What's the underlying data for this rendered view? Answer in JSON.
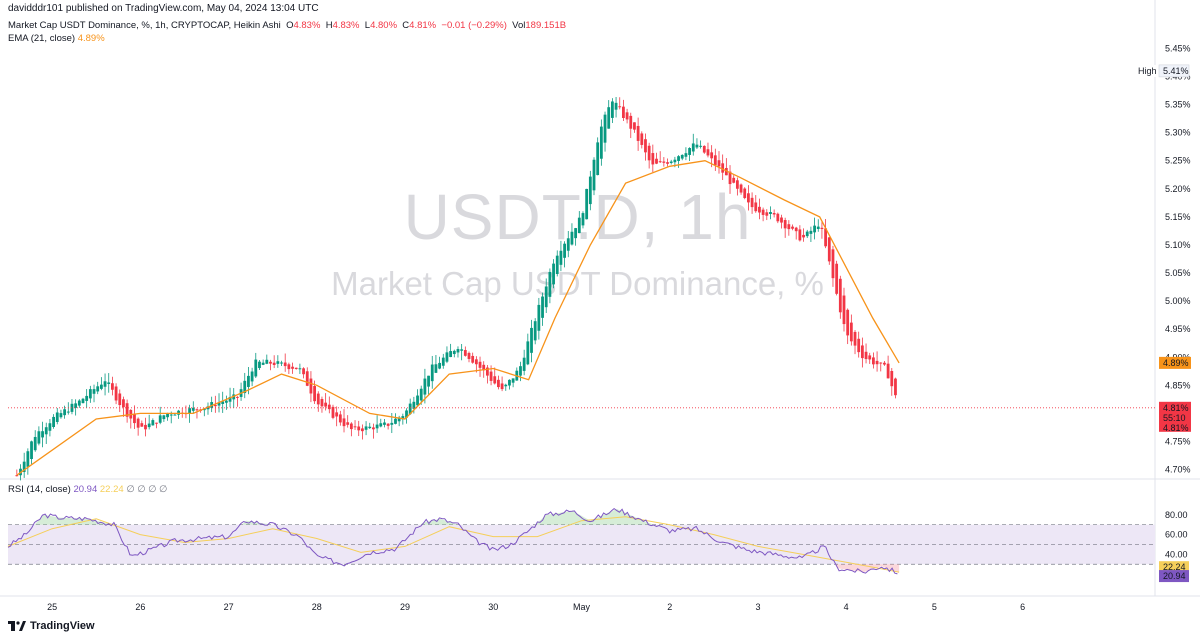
{
  "header": {
    "published": "davidddr101 published on TradingView.com, May 04, 2024 13:04 UTC",
    "symbol_line": "Market Cap USDT Dominance, %, 1h, CRYPTOCAP, Heikin Ashi",
    "ohlc": {
      "o_label": "O",
      "o": "4.83%",
      "h_label": "H",
      "h": "4.83%",
      "l_label": "L",
      "l": "4.80%",
      "c_label": "C",
      "c": "4.81%",
      "change": "−0.01 (−0.29%)",
      "vol_label": "Vol",
      "vol": "189.151B"
    },
    "ema_label": "EMA (21, close)",
    "ema_value": "4.89%"
  },
  "watermark": {
    "line1": "USDT.D, 1h",
    "line2": "Market Cap USDT Dominance, %"
  },
  "rsi_legend": {
    "label": "RSI (14, close)",
    "rsi": "20.94",
    "ma": "22.24",
    "extra": "∅ ∅ ∅ ∅"
  },
  "footer": {
    "brand": "TradingView"
  },
  "colors": {
    "up": "#089981",
    "down": "#f23645",
    "ema": "#f7931a",
    "rsi": "#7e57c2",
    "rsi_ma": "#f5cf5a",
    "band": "#ede7f6"
  },
  "chart_data": {
    "type": "candlestick",
    "chart_style": "Heikin Ashi",
    "timeframe": "1h",
    "y_ticks": [
      "5.45%",
      "5.40%",
      "5.35%",
      "5.30%",
      "5.25%",
      "5.20%",
      "5.15%",
      "5.10%",
      "5.05%",
      "5.00%",
      "4.95%",
      "4.90%",
      "4.85%",
      "4.80%",
      "4.75%",
      "4.70%"
    ],
    "y_tick_values": [
      5.45,
      5.4,
      5.35,
      5.3,
      5.25,
      5.2,
      5.15,
      5.1,
      5.05,
      5.0,
      4.95,
      4.9,
      4.85,
      4.8,
      4.75,
      4.7
    ],
    "ylim": [
      4.685,
      5.465
    ],
    "x_ticks": [
      "25",
      "26",
      "27",
      "28",
      "29",
      "30",
      "May",
      "2",
      "3",
      "4",
      "5",
      "6"
    ],
    "x_tick_days": [
      0,
      1,
      2,
      3,
      4,
      5,
      6,
      7,
      8,
      9,
      10,
      11
    ],
    "x_range_days": [
      -0.5,
      12.5
    ],
    "labels": {
      "high_label": "High",
      "high_value": "5.41%",
      "ema_badge": "4.89%",
      "price_badge": "4.81%",
      "countdown": "55:10",
      "price_badge2": "4.81%"
    },
    "price_levels": {
      "high": 5.41,
      "ema": 4.89,
      "last": 4.81
    },
    "key_closes": [
      {
        "day": -0.4,
        "close": 4.69
      },
      {
        "day": -0.2,
        "close": 4.76
      },
      {
        "day": 0.0,
        "close": 4.79
      },
      {
        "day": 0.3,
        "close": 4.82
      },
      {
        "day": 0.6,
        "close": 4.86
      },
      {
        "day": 0.8,
        "close": 4.81
      },
      {
        "day": 1.0,
        "close": 4.77
      },
      {
        "day": 1.3,
        "close": 4.8
      },
      {
        "day": 1.7,
        "close": 4.81
      },
      {
        "day": 2.1,
        "close": 4.83
      },
      {
        "day": 2.3,
        "close": 4.89
      },
      {
        "day": 2.5,
        "close": 4.89
      },
      {
        "day": 2.8,
        "close": 4.88
      },
      {
        "day": 3.0,
        "close": 4.82
      },
      {
        "day": 3.4,
        "close": 4.77
      },
      {
        "day": 3.8,
        "close": 4.78
      },
      {
        "day": 4.0,
        "close": 4.8
      },
      {
        "day": 4.3,
        "close": 4.88
      },
      {
        "day": 4.6,
        "close": 4.92
      },
      {
        "day": 4.8,
        "close": 4.89
      },
      {
        "day": 5.1,
        "close": 4.84
      },
      {
        "day": 5.3,
        "close": 4.88
      },
      {
        "day": 5.5,
        "close": 4.98
      },
      {
        "day": 5.7,
        "close": 5.08
      },
      {
        "day": 6.0,
        "close": 5.15
      },
      {
        "day": 6.2,
        "close": 5.3
      },
      {
        "day": 6.35,
        "close": 5.36
      },
      {
        "day": 6.6,
        "close": 5.3
      },
      {
        "day": 6.8,
        "close": 5.24
      },
      {
        "day": 7.0,
        "close": 5.25
      },
      {
        "day": 7.3,
        "close": 5.28
      },
      {
        "day": 7.6,
        "close": 5.23
      },
      {
        "day": 7.9,
        "close": 5.17
      },
      {
        "day": 8.2,
        "close": 5.15
      },
      {
        "day": 8.5,
        "close": 5.11
      },
      {
        "day": 8.7,
        "close": 5.14
      },
      {
        "day": 8.85,
        "close": 5.04
      },
      {
        "day": 9.0,
        "close": 4.94
      },
      {
        "day": 9.2,
        "close": 4.9
      },
      {
        "day": 9.45,
        "close": 4.88
      },
      {
        "day": 9.6,
        "close": 4.81
      }
    ],
    "ema_21": [
      {
        "day": -0.4,
        "value": 4.69
      },
      {
        "day": 0.5,
        "value": 4.79
      },
      {
        "day": 1.0,
        "value": 4.8
      },
      {
        "day": 1.6,
        "value": 4.8
      },
      {
        "day": 2.2,
        "value": 4.84
      },
      {
        "day": 2.6,
        "value": 4.87
      },
      {
        "day": 3.0,
        "value": 4.85
      },
      {
        "day": 3.6,
        "value": 4.8
      },
      {
        "day": 4.0,
        "value": 4.79
      },
      {
        "day": 4.5,
        "value": 4.87
      },
      {
        "day": 5.0,
        "value": 4.88
      },
      {
        "day": 5.4,
        "value": 4.86
      },
      {
        "day": 5.7,
        "value": 4.97
      },
      {
        "day": 6.1,
        "value": 5.1
      },
      {
        "day": 6.5,
        "value": 5.21
      },
      {
        "day": 7.0,
        "value": 5.24
      },
      {
        "day": 7.4,
        "value": 5.25
      },
      {
        "day": 7.8,
        "value": 5.22
      },
      {
        "day": 8.3,
        "value": 5.18
      },
      {
        "day": 8.7,
        "value": 5.15
      },
      {
        "day": 9.0,
        "value": 5.06
      },
      {
        "day": 9.3,
        "value": 4.97
      },
      {
        "day": 9.6,
        "value": 4.89
      }
    ],
    "rsi": {
      "y_ticks": [
        "80.00",
        "60.00",
        "40.00"
      ],
      "y_tick_values": [
        80,
        60,
        40
      ],
      "ylim": [
        12,
        95
      ],
      "band": [
        30,
        70
      ],
      "midline": 50,
      "labels": {
        "ma_badge": "22.24",
        "rsi_badge": "20.94"
      },
      "rsi_values": [
        {
          "day": -0.5,
          "value": 48
        },
        {
          "day": -0.3,
          "value": 60
        },
        {
          "day": -0.1,
          "value": 80
        },
        {
          "day": 0.1,
          "value": 77
        },
        {
          "day": 0.4,
          "value": 76
        },
        {
          "day": 0.7,
          "value": 70
        },
        {
          "day": 0.9,
          "value": 38
        },
        {
          "day": 1.1,
          "value": 44
        },
        {
          "day": 1.4,
          "value": 54
        },
        {
          "day": 1.7,
          "value": 56
        },
        {
          "day": 2.0,
          "value": 58
        },
        {
          "day": 2.2,
          "value": 74
        },
        {
          "day": 2.5,
          "value": 70
        },
        {
          "day": 2.8,
          "value": 58
        },
        {
          "day": 3.0,
          "value": 38
        },
        {
          "day": 3.3,
          "value": 30
        },
        {
          "day": 3.6,
          "value": 42
        },
        {
          "day": 3.9,
          "value": 46
        },
        {
          "day": 4.2,
          "value": 72
        },
        {
          "day": 4.4,
          "value": 76
        },
        {
          "day": 4.6,
          "value": 70
        },
        {
          "day": 4.8,
          "value": 54
        },
        {
          "day": 5.0,
          "value": 44
        },
        {
          "day": 5.2,
          "value": 50
        },
        {
          "day": 5.4,
          "value": 64
        },
        {
          "day": 5.6,
          "value": 80
        },
        {
          "day": 5.9,
          "value": 84
        },
        {
          "day": 6.1,
          "value": 74
        },
        {
          "day": 6.4,
          "value": 86
        },
        {
          "day": 6.7,
          "value": 74
        },
        {
          "day": 7.0,
          "value": 64
        },
        {
          "day": 7.3,
          "value": 66
        },
        {
          "day": 7.6,
          "value": 52
        },
        {
          "day": 7.9,
          "value": 44
        },
        {
          "day": 8.2,
          "value": 40
        },
        {
          "day": 8.5,
          "value": 36
        },
        {
          "day": 8.75,
          "value": 48
        },
        {
          "day": 8.9,
          "value": 26
        },
        {
          "day": 9.2,
          "value": 22
        },
        {
          "day": 9.4,
          "value": 28
        },
        {
          "day": 9.6,
          "value": 21
        }
      ],
      "ma_values": [
        {
          "day": -0.5,
          "value": 48
        },
        {
          "day": 0.0,
          "value": 66
        },
        {
          "day": 0.5,
          "value": 76
        },
        {
          "day": 1.0,
          "value": 60
        },
        {
          "day": 1.5,
          "value": 52
        },
        {
          "day": 2.0,
          "value": 56
        },
        {
          "day": 2.5,
          "value": 66
        },
        {
          "day": 3.0,
          "value": 56
        },
        {
          "day": 3.5,
          "value": 42
        },
        {
          "day": 4.0,
          "value": 48
        },
        {
          "day": 4.5,
          "value": 68
        },
        {
          "day": 5.0,
          "value": 58
        },
        {
          "day": 5.5,
          "value": 58
        },
        {
          "day": 6.0,
          "value": 74
        },
        {
          "day": 6.5,
          "value": 78
        },
        {
          "day": 7.0,
          "value": 70
        },
        {
          "day": 7.5,
          "value": 60
        },
        {
          "day": 8.0,
          "value": 48
        },
        {
          "day": 8.5,
          "value": 40
        },
        {
          "day": 9.0,
          "value": 32
        },
        {
          "day": 9.6,
          "value": 22
        }
      ]
    }
  }
}
